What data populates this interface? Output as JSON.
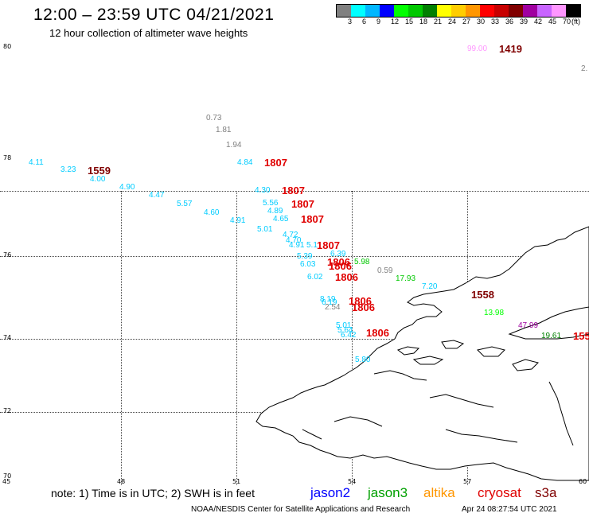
{
  "header": {
    "title": "12:00 – 23:59 UTC 04/21/2021",
    "subtitle": "12 hour collection of altimeter wave heights"
  },
  "legend": {
    "unit": "(ft)",
    "swatches": [
      "#808080",
      "#00ffff",
      "#00b7ff",
      "#0000ff",
      "#00ff00",
      "#00c800",
      "#008000",
      "#ffff00",
      "#ffcd00",
      "#ff9600",
      "#ff0000",
      "#c80000",
      "#800000",
      "#a000a0",
      "#c864ff",
      "#ff96ff",
      "#000000"
    ],
    "labels": [
      "3",
      "6",
      "9",
      "12",
      "15",
      "18",
      "21",
      "24",
      "27",
      "30",
      "33",
      "36",
      "39",
      "42",
      "45",
      "70"
    ]
  },
  "axes": {
    "lat_labels": [
      "80",
      "78",
      "76",
      "74",
      "72",
      "70"
    ],
    "lon_labels": [
      "45",
      "48",
      "51",
      "54",
      "57",
      "60"
    ]
  },
  "measurements": [
    {
      "text": "99.00",
      "color": "#ff96ff"
    },
    {
      "text": "2.",
      "color": "#808080"
    },
    {
      "text": "0.73",
      "color": "#808080"
    },
    {
      "text": "1.81",
      "color": "#808080"
    },
    {
      "text": "1.94",
      "color": "#808080"
    },
    {
      "text": "4.11",
      "color": "#00ccff"
    },
    {
      "text": "3.23",
      "color": "#00ccff"
    },
    {
      "text": "4.00",
      "color": "#00ccff"
    },
    {
      "text": "4.90",
      "color": "#00ccff"
    },
    {
      "text": "4.47",
      "color": "#00ccff"
    },
    {
      "text": "5.57",
      "color": "#00ccff"
    },
    {
      "text": "4.60",
      "color": "#00ccff"
    },
    {
      "text": "4.91",
      "color": "#00ccff"
    },
    {
      "text": "4.84",
      "color": "#00ccff"
    },
    {
      "text": "4.30",
      "color": "#00ccff"
    },
    {
      "text": "5.56",
      "color": "#00ccff"
    },
    {
      "text": "4.89",
      "color": "#00ccff"
    },
    {
      "text": "4.65",
      "color": "#00ccff"
    },
    {
      "text": "5.01",
      "color": "#00ccff"
    },
    {
      "text": "4.72",
      "color": "#00ccff"
    },
    {
      "text": "4.70",
      "color": "#00ccff"
    },
    {
      "text": "4.91",
      "color": "#00ccff"
    },
    {
      "text": "5.1",
      "color": "#00ccff"
    },
    {
      "text": "5.39",
      "color": "#00ccff"
    },
    {
      "text": "6.39",
      "color": "#00ccff"
    },
    {
      "text": "6.03",
      "color": "#00ccff"
    },
    {
      "text": "6.02",
      "color": "#00ccff"
    },
    {
      "text": "5.98",
      "color": "#00c800"
    },
    {
      "text": "0.59",
      "color": "#808080"
    },
    {
      "text": "17.93",
      "color": "#00c800"
    },
    {
      "text": "7.20",
      "color": "#00ccff"
    },
    {
      "text": "8.19",
      "color": "#00ccff"
    },
    {
      "text": "6.19",
      "color": "#00ccff"
    },
    {
      "text": "2.54",
      "color": "#808080"
    },
    {
      "text": "13.98",
      "color": "#00ff00"
    },
    {
      "text": "47.99",
      "color": "#a000a0"
    },
    {
      "text": "19.61",
      "color": "#008000"
    },
    {
      "text": "5.01",
      "color": "#00ccff"
    },
    {
      "text": "5.64",
      "color": "#00ccff"
    },
    {
      "text": "6.42",
      "color": "#00ccff"
    },
    {
      "text": "5.80",
      "color": "#00ccff"
    }
  ],
  "times": [
    {
      "text": "1419",
      "color": "#800000"
    },
    {
      "text": "1559",
      "color": "#800000"
    },
    {
      "text": "1807",
      "color": "#e00000"
    },
    {
      "text": "1807",
      "color": "#e00000"
    },
    {
      "text": "1807",
      "color": "#e00000"
    },
    {
      "text": "1807",
      "color": "#e00000"
    },
    {
      "text": "1807",
      "color": "#e00000"
    },
    {
      "text": "1806",
      "color": "#e00000"
    },
    {
      "text": "1806",
      "color": "#e00000"
    },
    {
      "text": "1806",
      "color": "#e00000"
    },
    {
      "text": "1806",
      "color": "#e00000"
    },
    {
      "text": "1806",
      "color": "#e00000"
    },
    {
      "text": "1806",
      "color": "#e00000"
    },
    {
      "text": "1558",
      "color": "#800000"
    },
    {
      "text": "155",
      "color": "#e00000"
    }
  ],
  "footer": {
    "note": "note:  1) Time is in UTC;  2) SWH is in feet",
    "satellites": [
      {
        "name": "jason2",
        "color": "#0000ff"
      },
      {
        "name": "jason3",
        "color": "#00a000"
      },
      {
        "name": "altika",
        "color": "#ff9600"
      },
      {
        "name": "cryosat",
        "color": "#e00000"
      },
      {
        "name": "s3a",
        "color": "#800000"
      }
    ],
    "credit": "NOAA/NESDIS Center for Satellite Applications and Research",
    "timestamp": "Apr 24 08:27:54 UTC 2021"
  }
}
